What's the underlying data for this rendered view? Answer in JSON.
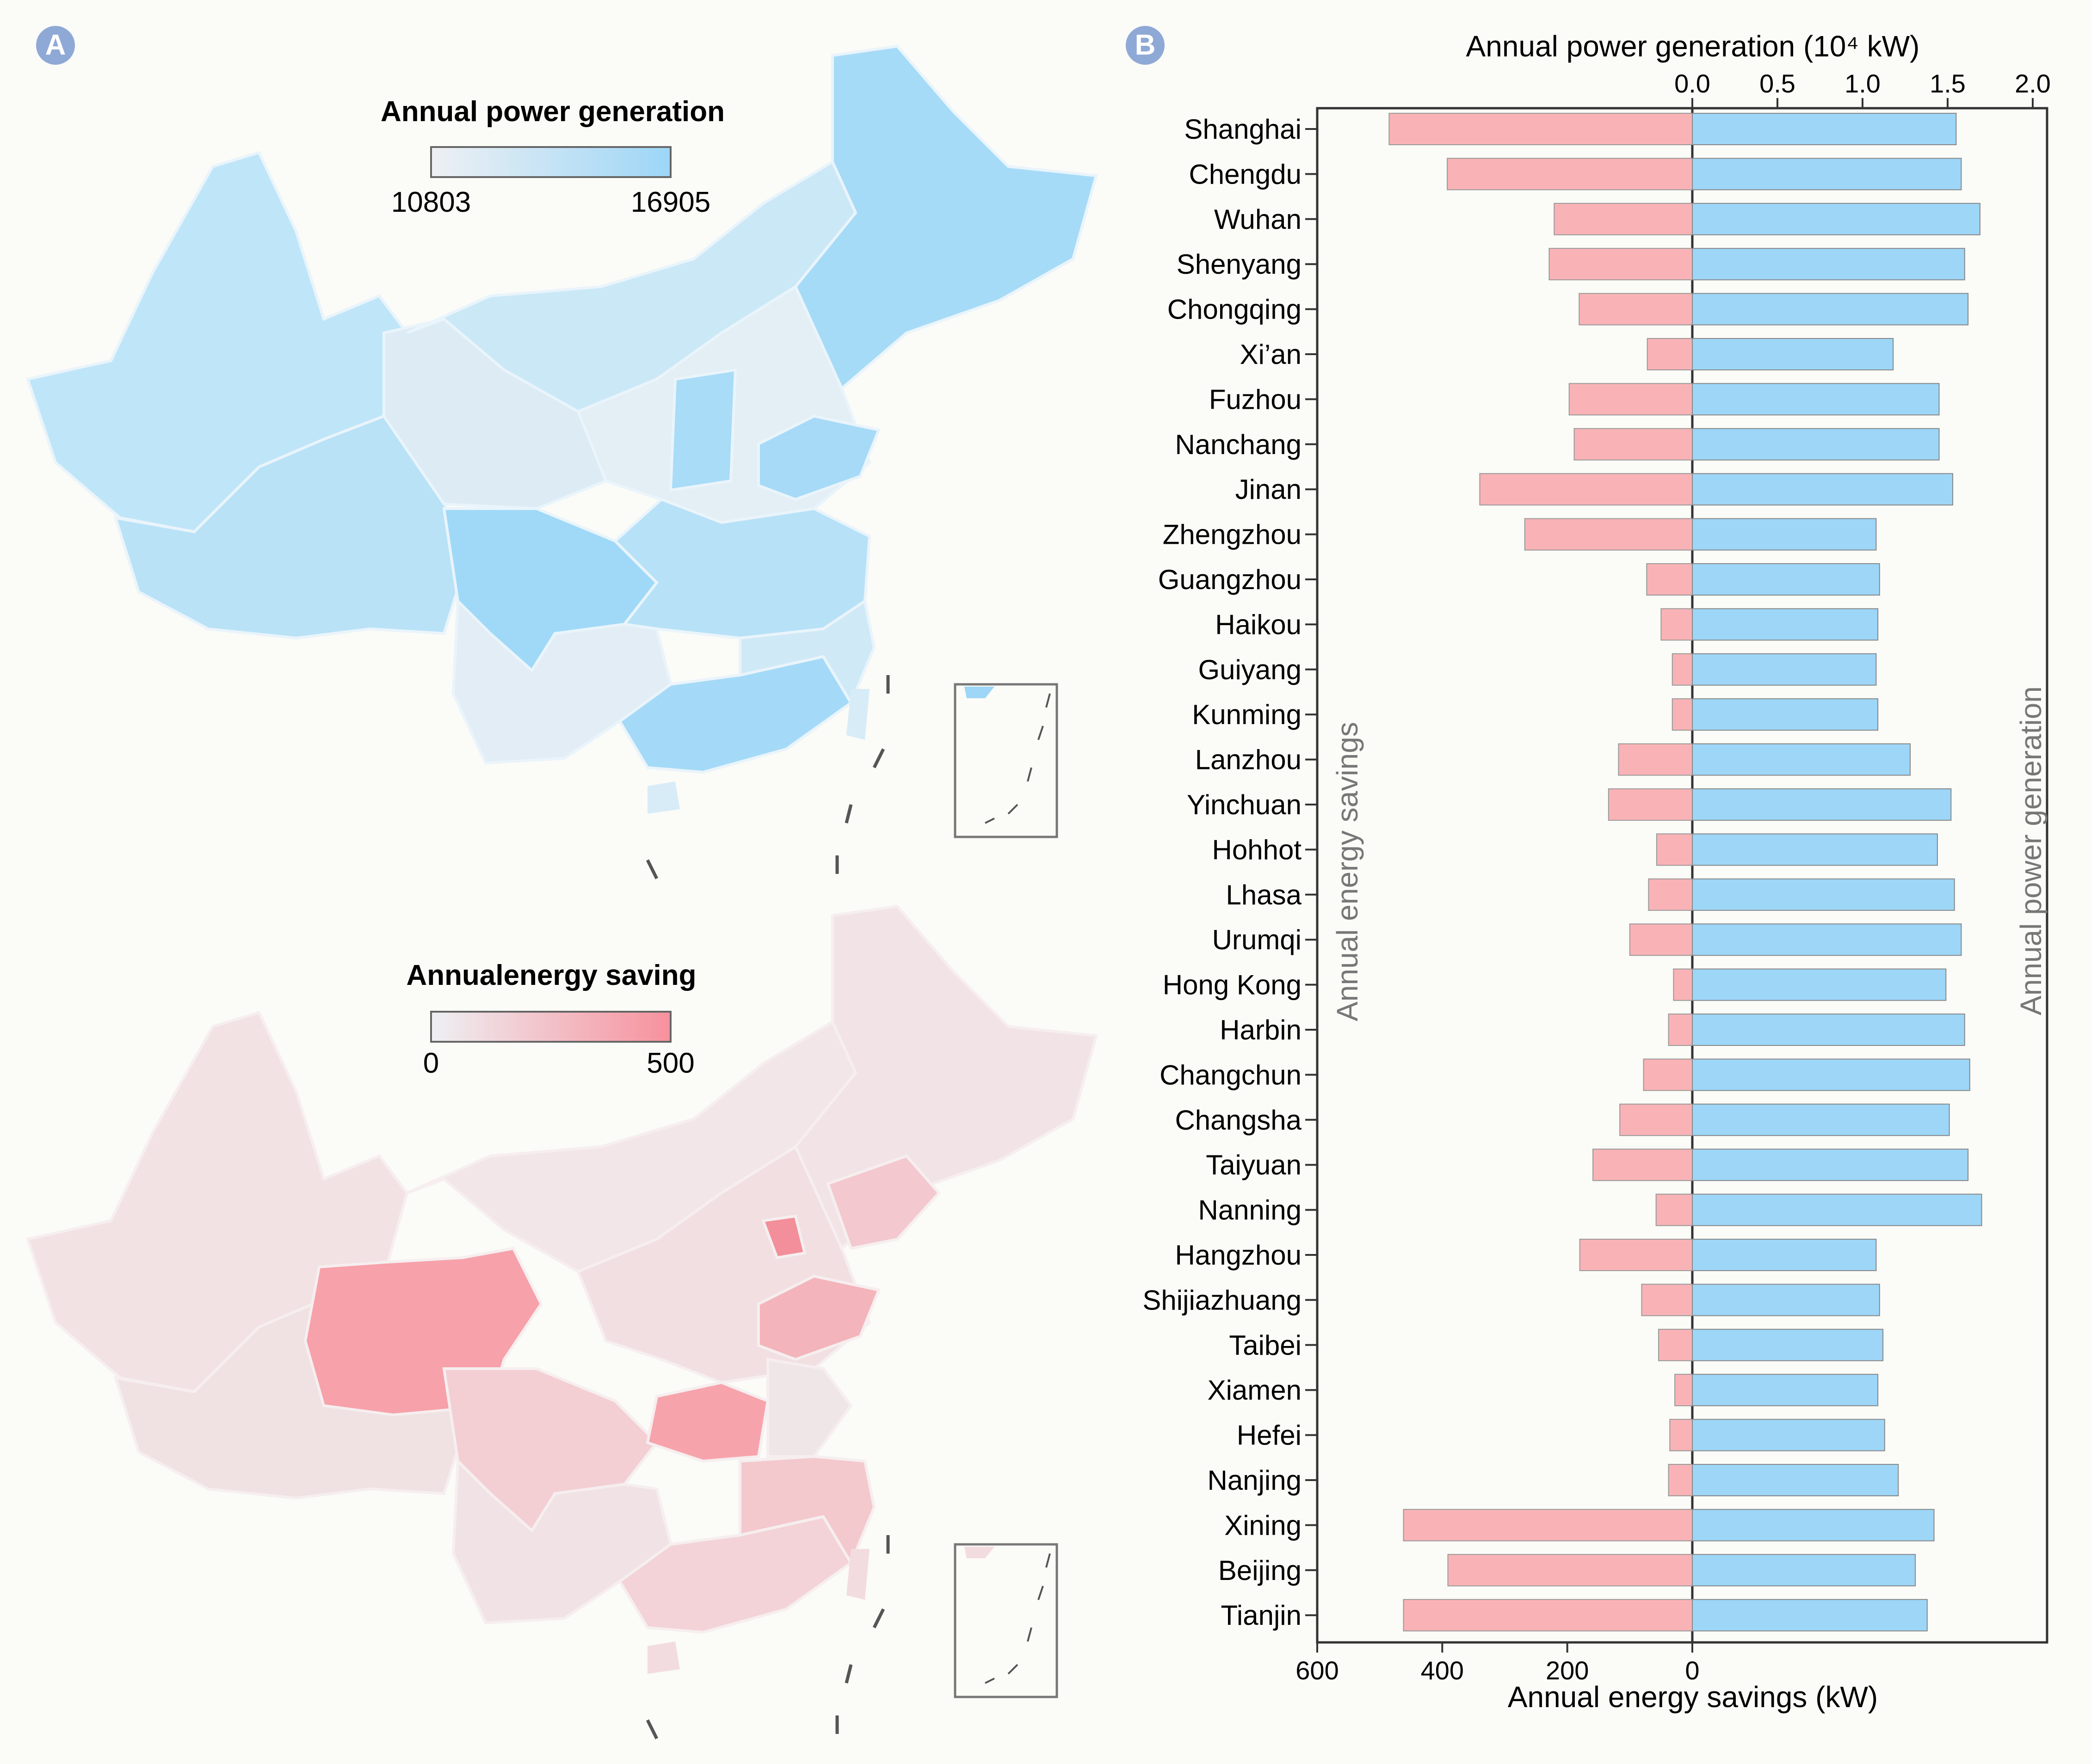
{
  "panels": {
    "a": "A",
    "b": "B"
  },
  "map_top": {
    "legend_title": "Annual power generation",
    "legend_min": "10803",
    "legend_max": "16905",
    "color_low": "#eef0f3",
    "color_high": "#9dd6f7"
  },
  "map_bottom": {
    "legend_title": "Annualenergy saving",
    "legend_min": "0",
    "legend_max": "500",
    "color_low": "#eef0f3",
    "color_high": "#f7919d"
  },
  "chart_data": {
    "type": "bar",
    "orientation": "horizontal-diverging",
    "top_axis_label": "Annual power generation (10⁴ kW)",
    "bottom_axis_label": "Annual energy savings (kW)",
    "left_vertical_label": "Annual energy savings",
    "right_vertical_label": "Annual power generation",
    "top_ticks": [
      "0.0",
      "0.5",
      "1.0",
      "1.5",
      "2.0"
    ],
    "top_tick_values": [
      0,
      0.5,
      1.0,
      1.5,
      2.0
    ],
    "bottom_ticks": [
      "600",
      "400",
      "200",
      "0"
    ],
    "bottom_tick_values": [
      600,
      400,
      200,
      0
    ],
    "savings_range": [
      0,
      600
    ],
    "generation_range": [
      0,
      2.1
    ],
    "savings_color": "#f9b3b6",
    "generation_color": "#9dd6f7",
    "categories": [
      "Shanghai",
      "Chengdu",
      "Wuhan",
      "Shenyang",
      "Chongqing",
      "Xi’an",
      "Fuzhou",
      "Nanchang",
      "Jinan",
      "Zhengzhou",
      "Guangzhou",
      "Haikou",
      "Guiyang",
      "Kunming",
      "Lanzhou",
      "Yinchuan",
      "Hohhot",
      "Lhasa",
      "Urumqi",
      "Hong Kong",
      "Harbin",
      "Changchun",
      "Changsha",
      "Taiyuan",
      "Nanning",
      "Hangzhou",
      "Shijiazhuang",
      "Taibei",
      "Xiamen",
      "Hefei",
      "Nanjing",
      "Xining",
      "Beijing",
      "Tianjin"
    ],
    "series": [
      {
        "name": "Annual energy savings",
        "unit": "kW",
        "values": [
          485,
          392,
          221,
          229,
          181,
          72,
          197,
          189,
          340,
          268,
          73,
          50,
          32,
          32,
          118,
          134,
          57,
          70,
          100,
          30,
          38,
          78,
          116,
          159,
          58,
          180,
          81,
          54,
          28,
          36,
          38,
          462,
          391,
          462
        ]
      },
      {
        "name": "Annual power generation",
        "unit": "10^4 kW",
        "values": [
          1.55,
          1.58,
          1.69,
          1.6,
          1.62,
          1.18,
          1.45,
          1.45,
          1.53,
          1.08,
          1.1,
          1.09,
          1.08,
          1.09,
          1.28,
          1.52,
          1.44,
          1.54,
          1.58,
          1.49,
          1.6,
          1.63,
          1.51,
          1.62,
          1.7,
          1.08,
          1.1,
          1.12,
          1.09,
          1.13,
          1.21,
          1.42,
          1.31,
          1.38
        ]
      }
    ]
  }
}
